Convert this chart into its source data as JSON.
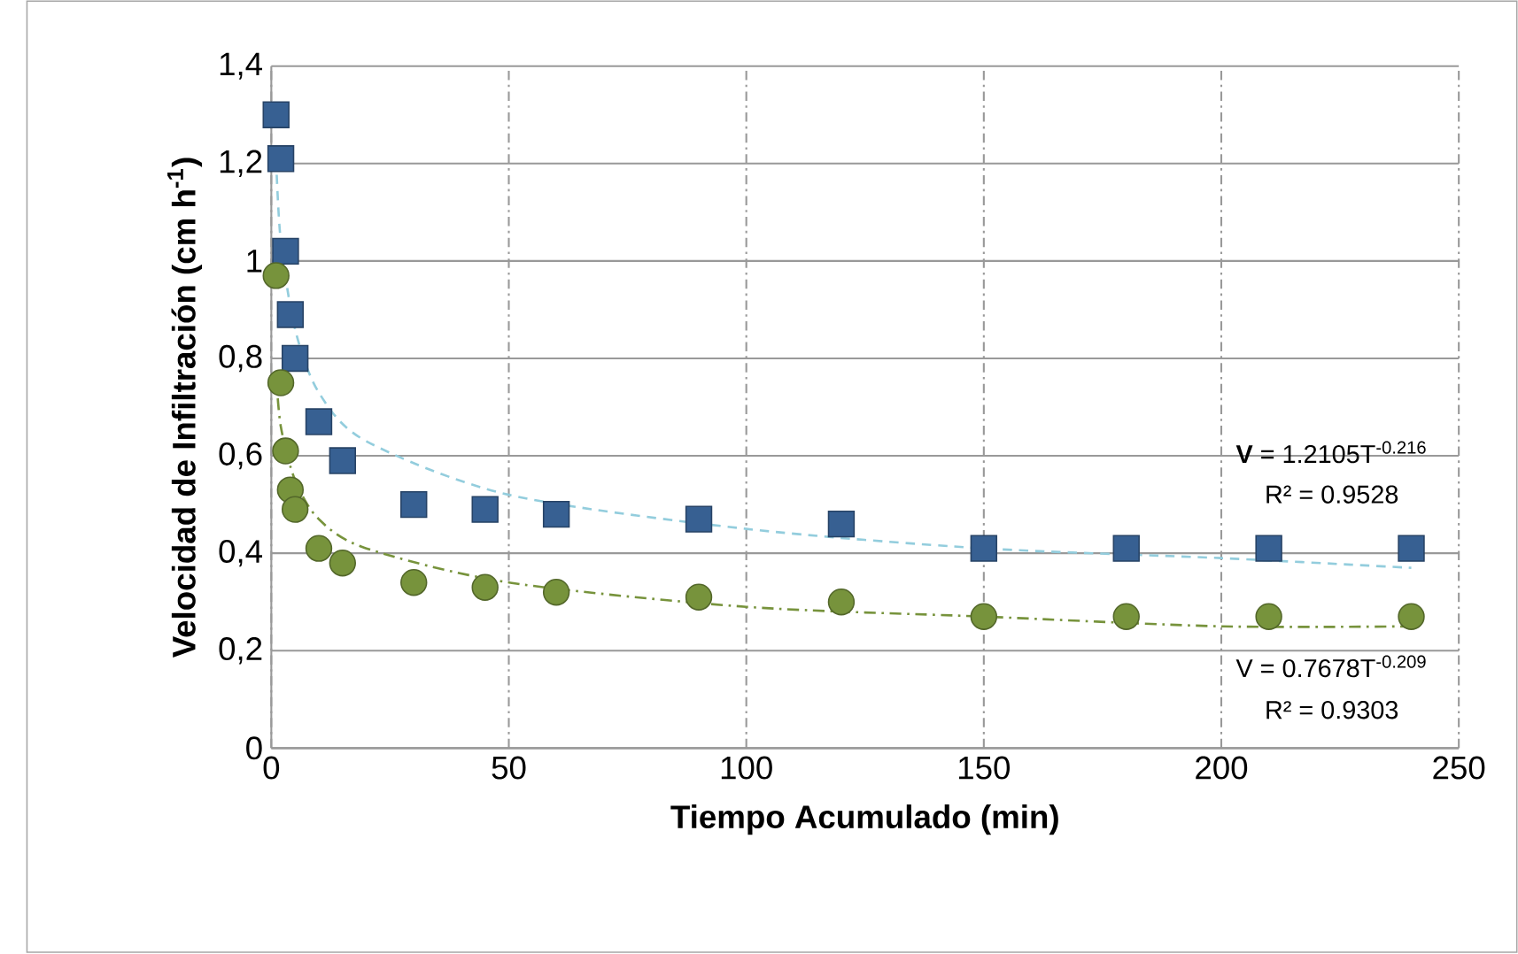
{
  "chart_data": {
    "type": "scatter",
    "xlabel": "Tiempo Acumulado (min)",
    "ylabel": "Velocidad de Infiltración (cm h$^{-1}$)",
    "xlim": [
      0,
      250
    ],
    "xticks": [
      0,
      50,
      100,
      150,
      200,
      250
    ],
    "ylim": [
      0,
      1.4
    ],
    "yticks": [
      {
        "value": 0,
        "label": "0"
      },
      {
        "value": 0.2,
        "label": "0,2"
      },
      {
        "value": 0.4,
        "label": "0,4"
      },
      {
        "value": 0.6,
        "label": "0,6"
      },
      {
        "value": 0.8,
        "label": "0,8"
      },
      {
        "value": 1,
        "label": "1"
      },
      {
        "value": 1.2,
        "label": "1,2"
      },
      {
        "value": 1.4,
        "label": "1,4"
      }
    ],
    "grid": true,
    "series": [
      {
        "marker": "square",
        "color": "#376092",
        "x": [
          1,
          2,
          3,
          4,
          5,
          10,
          15,
          30,
          45,
          60,
          90,
          120,
          150,
          180,
          210,
          240
        ],
        "values": [
          1.3,
          1.21,
          1.02,
          0.89,
          0.8,
          0.67,
          0.59,
          0.5,
          0.49,
          0.48,
          0.47,
          0.46,
          0.41,
          0.41,
          0.41,
          0.41
        ]
      },
      {
        "marker": "circle",
        "color": "#77933c",
        "x": [
          1,
          2,
          3,
          4,
          5,
          10,
          15,
          30,
          45,
          60,
          90,
          120,
          150,
          180,
          210,
          240
        ],
        "values": [
          0.97,
          0.75,
          0.61,
          0.53,
          0.49,
          0.41,
          0.38,
          0.34,
          0.33,
          0.32,
          0.31,
          0.3,
          0.27,
          0.27,
          0.27,
          0.27
        ]
      },
      {
        "type": "line",
        "marker": "none",
        "line_style": "dashed",
        "color": "#93cddd",
        "x": [
          1,
          2,
          5,
          10,
          20,
          50,
          100,
          150,
          200,
          240
        ],
        "values": [
          1.21,
          1.04,
          0.86,
          0.73,
          0.63,
          0.52,
          0.45,
          0.41,
          0.39,
          0.37
        ]
      },
      {
        "type": "line",
        "marker": "none",
        "line_style": "dashdot",
        "color": "#77933c",
        "x": [
          1,
          2,
          5,
          10,
          20,
          50,
          100,
          150,
          200,
          240
        ],
        "values": [
          0.77,
          0.66,
          0.55,
          0.47,
          0.41,
          0.34,
          0.29,
          0.27,
          0.25,
          0.25
        ]
      }
    ],
    "annotations": [
      "**V** = 1.2105T$^{-0.216}$",
      "R² = 0.9528",
      "V = 0.7678T$^{-0.209}$",
      "R² = 0.9303"
    ]
  }
}
